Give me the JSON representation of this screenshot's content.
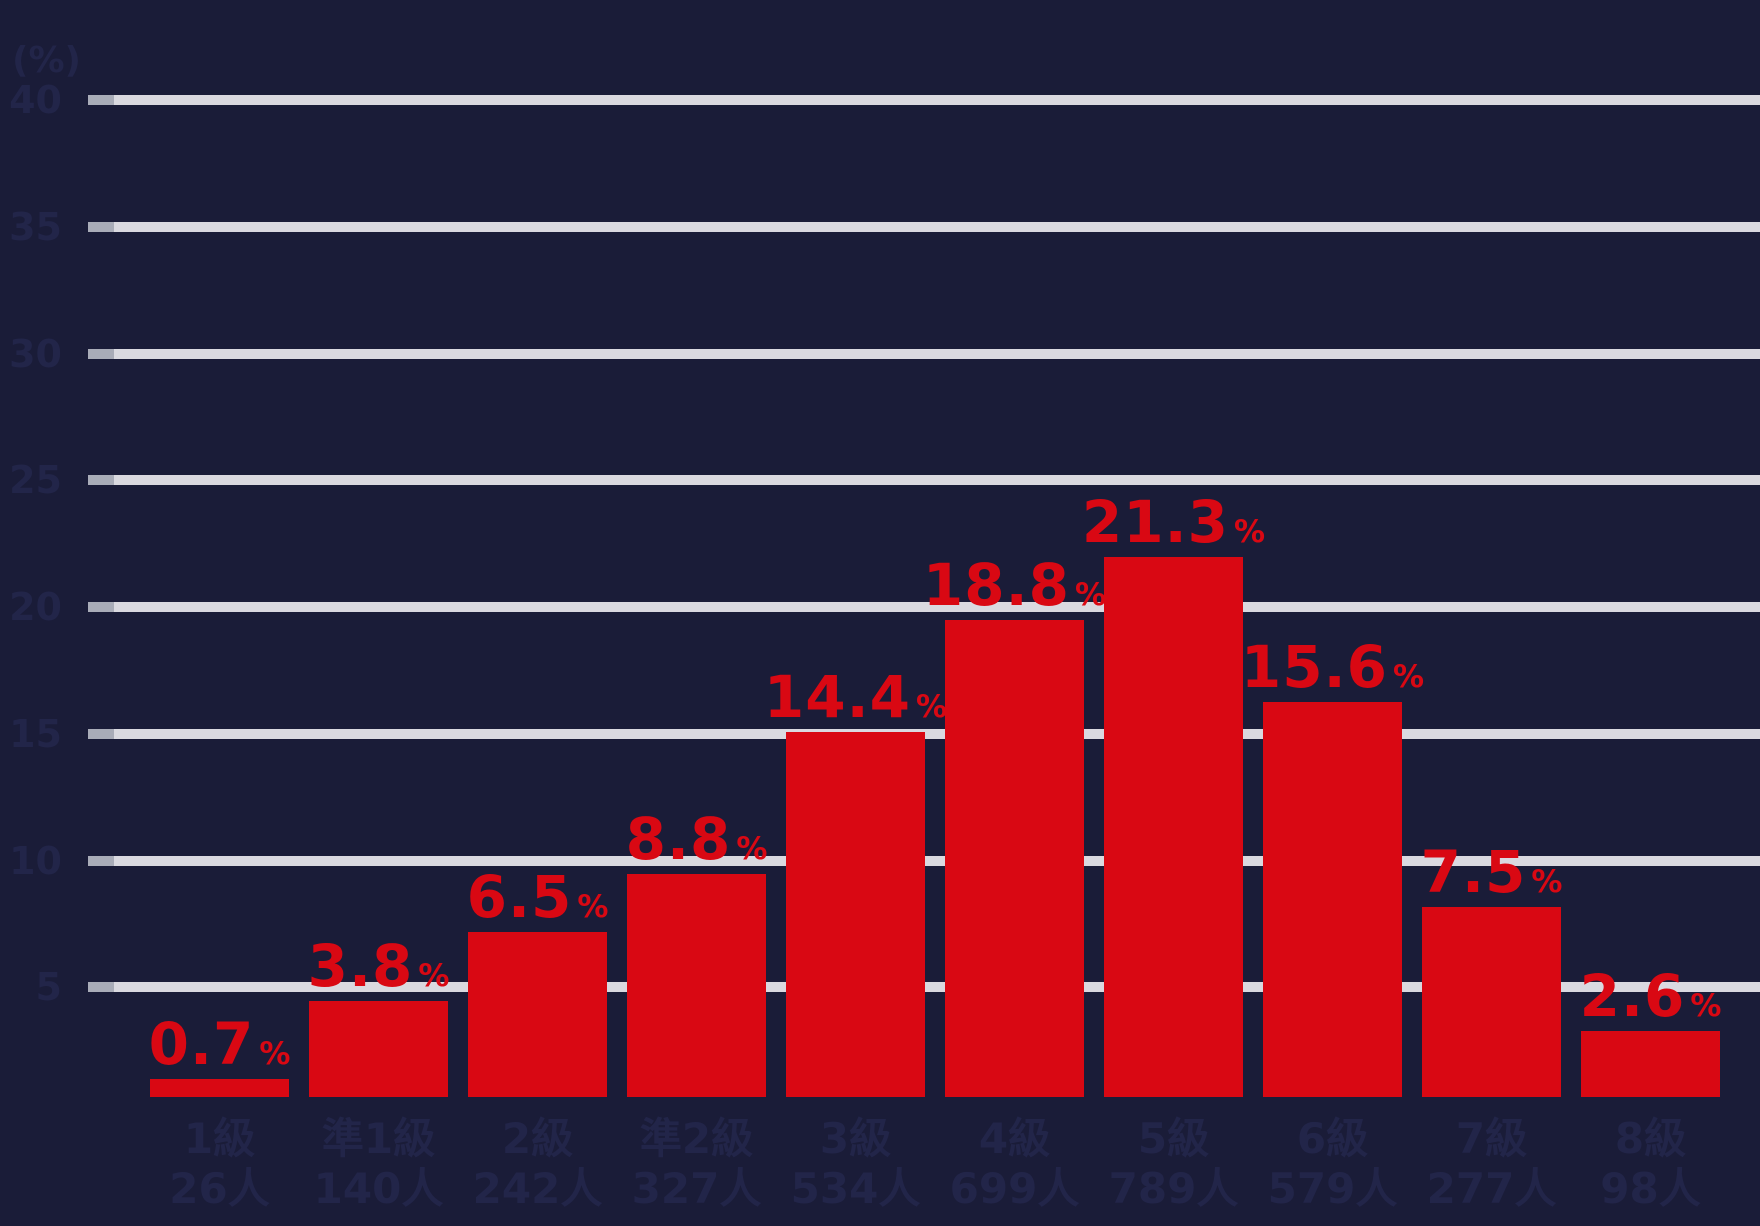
{
  "chart_data": {
    "type": "bar",
    "title": "",
    "unit_label": "(%)",
    "categories": [
      "1級",
      "準1級",
      "2級",
      "準2級",
      "3級",
      "4級",
      "5級",
      "6級",
      "7級",
      "8級"
    ],
    "counts": [
      "26人",
      "140人",
      "242人",
      "327人",
      "534人",
      "699人",
      "789人",
      "579人",
      "277人",
      "98人"
    ],
    "values": [
      0.7,
      3.8,
      6.5,
      8.8,
      14.4,
      18.8,
      21.3,
      15.6,
      7.5,
      2.6
    ],
    "value_labels": [
      "0.7",
      "3.8",
      "6.5",
      "8.8",
      "14.4",
      "18.8",
      "21.3",
      "15.6",
      "7.5",
      "2.6"
    ],
    "value_suffix": "%",
    "y_ticks": [
      "40",
      "35",
      "30",
      "25",
      "20",
      "15",
      "10",
      "5"
    ],
    "ylim": [
      0,
      40
    ],
    "grid": true,
    "legend": false,
    "colors": {
      "background": "#1a1c38",
      "bar": "#d90813",
      "value_label": "#d90813",
      "gridline": "#dad9e0",
      "gridline_tick": "#a9acb8",
      "axis_text": "#222549"
    }
  }
}
